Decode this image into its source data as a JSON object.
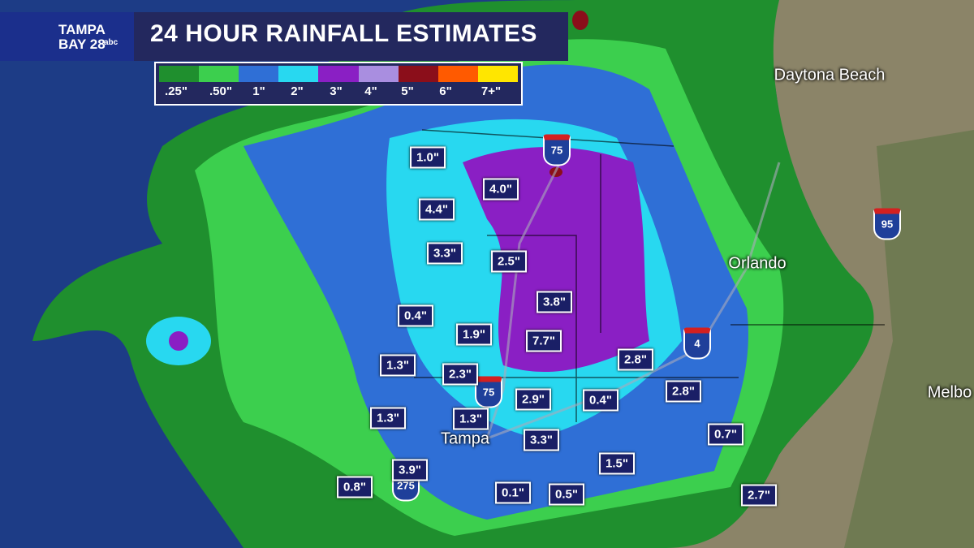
{
  "header": {
    "logo": [
      "TAMPA",
      "BAY 28",
      "abc"
    ],
    "title": "24 HOUR RAINFALL ESTIMATES"
  },
  "legend": {
    "labels": [
      ".25\"",
      ".50\"",
      "1\"",
      "2\"",
      "3\"",
      "4\"",
      "5\"",
      "6\"",
      "7+\""
    ],
    "colors": [
      "#1f8f2e",
      "#3ccf4e",
      "#2f6fd6",
      "#28d8f0",
      "#8a1fc4",
      "#a98ee0",
      "#8b0e1a",
      "#ff5a00",
      "#ffe600"
    ]
  },
  "cities": [
    "Daytona Beach",
    "Orlando",
    "Tampa",
    "Melbo"
  ],
  "interstates": [
    "75",
    "75",
    "4",
    "95",
    "275"
  ],
  "rainfall_labels": [
    "1.0\"",
    "4.0\"",
    "4.4\"",
    "3.3\"",
    "2.5\"",
    "3.8\"",
    "0.4\"",
    "1.9\"",
    "7.7\"",
    "1.3\"",
    "2.3\"",
    "2.8\"",
    "2.8\"",
    "2.9\"",
    "0.4\"",
    "1.3\"",
    "1.3\"",
    "3.3\"",
    "0.7\"",
    "1.5\"",
    "3.9\"",
    "0.8\"",
    "0.1\"",
    "0.5\"",
    "2.7\""
  ]
}
